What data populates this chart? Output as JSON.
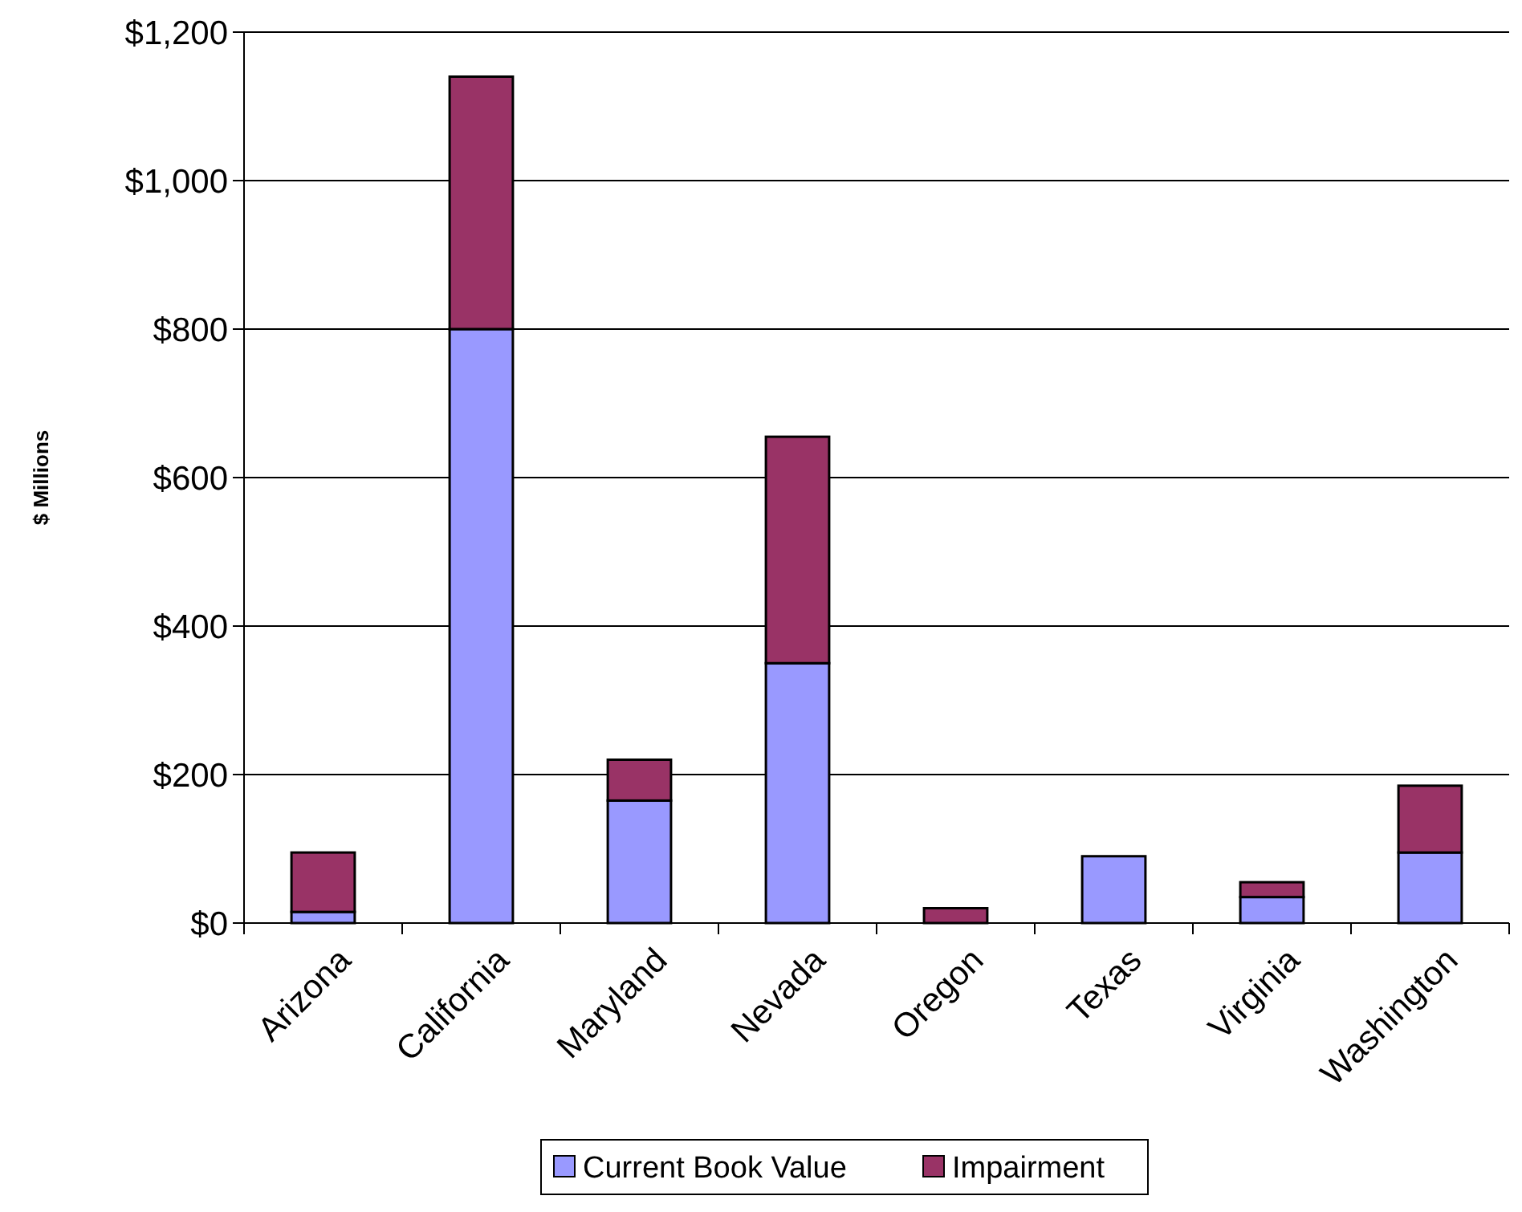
{
  "chart_data": {
    "type": "bar",
    "ylabel": "$ Millions",
    "categories": [
      "Arizona",
      "California",
      "Maryland",
      "Nevada",
      "Oregon",
      "Texas",
      "Virginia",
      "Washington"
    ],
    "series": [
      {
        "name": "Current Book Value",
        "color": "#9999ff",
        "values": [
          15,
          800,
          165,
          350,
          null,
          90,
          35,
          95
        ]
      },
      {
        "name": "Impairment",
        "color": "#993366",
        "values": [
          80,
          340,
          55,
          305,
          20,
          0,
          20,
          90
        ]
      }
    ],
    "stacked": true,
    "ylim": [
      0,
      1200
    ],
    "yticks": [
      {
        "value": 0,
        "label": "$0"
      },
      {
        "value": 200,
        "label": "$200"
      },
      {
        "value": 400,
        "label": "$400"
      },
      {
        "value": 600,
        "label": "$600"
      },
      {
        "value": 800,
        "label": "$800"
      },
      {
        "value": 1000,
        "label": "$1,000"
      },
      {
        "value": 1200,
        "label": "$1,200"
      }
    ],
    "grid": "y",
    "legend": "bottom"
  }
}
